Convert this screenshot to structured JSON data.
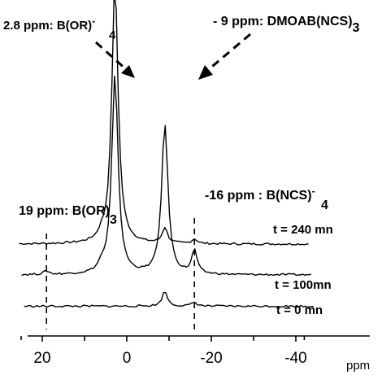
{
  "chart_data": {
    "type": "line",
    "xlabel": "ppm",
    "xlim": [
      26,
      -43
    ],
    "x_reversed": true,
    "x_ticks": [
      {
        "value": 20,
        "label": "20"
      },
      {
        "value": 0,
        "label": "0"
      },
      {
        "value": -20,
        "label": "-20"
      },
      {
        "value": -40,
        "label": "-40"
      }
    ],
    "x_minor_ticks": [
      10,
      -10,
      -30
    ],
    "series": [
      {
        "name": "t = 240 mn",
        "baseline": 0.79,
        "peaks": [
          {
            "ppm": 19,
            "height": 0.0
          },
          {
            "ppm": 6,
            "height": 0.12
          },
          {
            "ppm": 2.8,
            "height": 6.7
          },
          {
            "ppm": -9,
            "height": 0.4
          },
          {
            "ppm": -16,
            "height": 0.12
          }
        ]
      },
      {
        "name": "t = 100mn",
        "baseline": 0.0,
        "peaks": [
          {
            "ppm": 19,
            "height": 0.09
          },
          {
            "ppm": 6,
            "height": 0.16
          },
          {
            "ppm": 2.8,
            "height": 5.1
          },
          {
            "ppm": -9,
            "height": 3.85
          },
          {
            "ppm": -16,
            "height": 0.6
          }
        ]
      },
      {
        "name": "t = 0 mn",
        "baseline": -0.8,
        "peaks": [
          {
            "ppm": -9,
            "height": 0.38
          },
          {
            "ppm": -16,
            "height": 0.1
          }
        ]
      }
    ],
    "annotations": [
      {
        "id": "b_or4",
        "ppm": 2.8,
        "prefix": "2.8 ppm: B(OR)",
        "sub": "4",
        "sup": "-"
      },
      {
        "id": "dmoab",
        "ppm": -9,
        "prefix": "- 9 ppm: DMOAB(NCS)",
        "sub": "3",
        "sup": ""
      },
      {
        "id": "b_ncs4",
        "ppm": -16,
        "prefix": "-16 ppm : B(NCS)",
        "sub": "4",
        "sup": "-"
      },
      {
        "id": "b_or3",
        "ppm": 19,
        "prefix": "19 ppm: B(OR)",
        "sub": "3",
        "sup": ""
      }
    ]
  }
}
